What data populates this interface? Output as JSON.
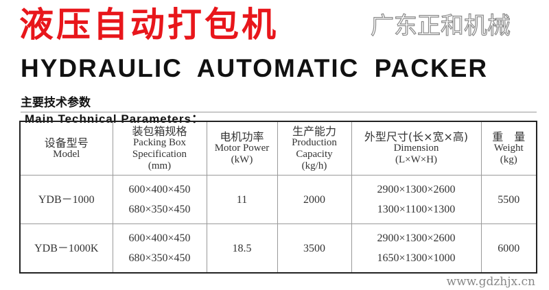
{
  "title_cn": "液压自动打包机",
  "title_en": "HYDRAULIC AUTOMATIC PACKER",
  "subtitle_cn": "主要技术参数",
  "subtitle_en": "Main Technical Parameters：",
  "table": {
    "headers": [
      {
        "cn": "设备型号",
        "en": [
          "Model"
        ]
      },
      {
        "cn": "装包箱规格",
        "en": [
          "Packing Box",
          "Specification",
          "(mm)"
        ]
      },
      {
        "cn": "电机功率",
        "en": [
          "Motor Power",
          "(kW)"
        ]
      },
      {
        "cn": "生产能力",
        "en": [
          "Production",
          "Capacity",
          "(kg/h)"
        ]
      },
      {
        "cn": "外型尺寸(长×宽×高)",
        "en": [
          "Dimension",
          "(L×W×H)"
        ]
      },
      {
        "cn": "重　量",
        "en": [
          "Weight",
          "(kg)"
        ]
      }
    ],
    "rows": [
      {
        "model": "YDB－1000",
        "box": [
          "600×400×450",
          "680×350×450"
        ],
        "power": "11",
        "capacity": "2000",
        "dimension": [
          "2900×1300×2600",
          "1300×1100×1300"
        ],
        "weight": "5500"
      },
      {
        "model": "YDB－1000K",
        "box": [
          "600×400×450",
          "680×350×450"
        ],
        "power": "18.5",
        "capacity": "3500",
        "dimension": [
          "2900×1300×2600",
          "1650×1300×1000"
        ],
        "weight": "6000"
      }
    ]
  },
  "watermark": {
    "name": "广东正和机械",
    "url": "www.gdzhjx.cn"
  },
  "colors": {
    "title": "#e8161b"
  }
}
